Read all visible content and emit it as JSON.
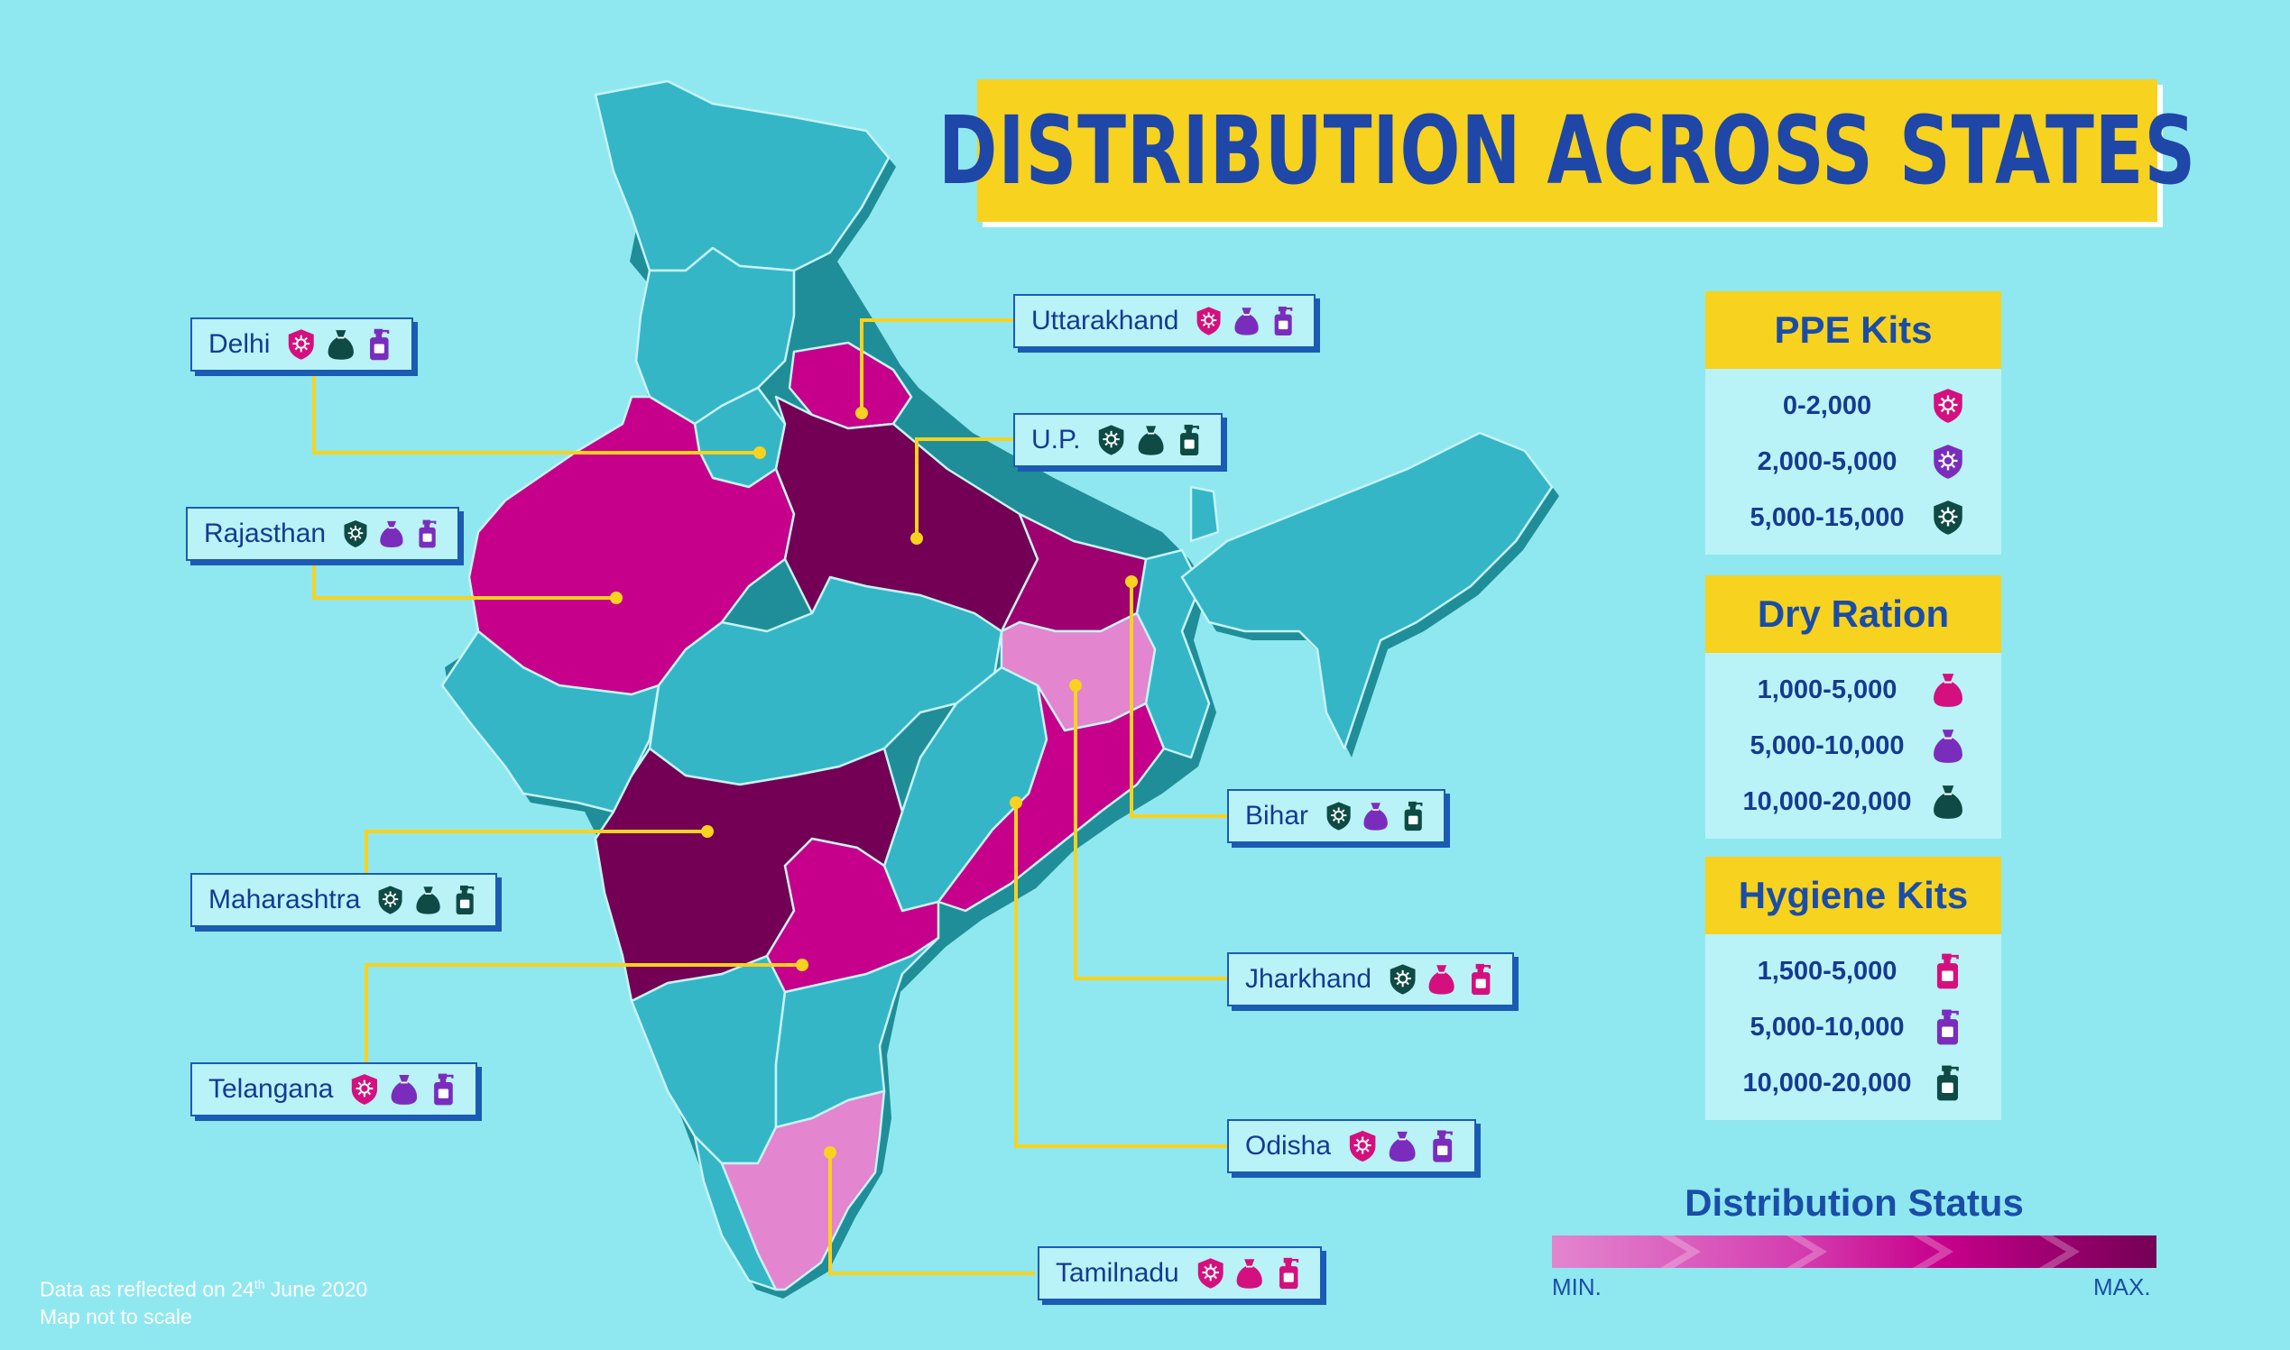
{
  "title": "DISTRIBUTION ACROSS STATES",
  "colors": {
    "background": "#8fe8f0",
    "map_base": "#34b6c7",
    "level_1": "#e385cf",
    "level_2": "#c7008b",
    "level_3": "#9e006f",
    "level_4": "#730054",
    "connector": "#f7d21f",
    "ppe_low": "#d4107e",
    "ppe_mid": "#7a2dbd",
    "ppe_high": "#0f4a45"
  },
  "states": [
    {
      "name": "Delhi",
      "ppe": "ppe-0-2000-icon",
      "ration": "ration-10000-20000-icon",
      "hygiene": "hygiene-5000-10000-icon"
    },
    {
      "name": "Rajasthan",
      "ppe": "ppe-5000-15000-icon",
      "ration": "ration-5000-10000-icon",
      "hygiene": "hygiene-5000-10000-icon"
    },
    {
      "name": "Maharashtra",
      "ppe": "ppe-5000-15000-icon",
      "ration": "ration-10000-20000-icon",
      "hygiene": "hygiene-10000-20000-icon"
    },
    {
      "name": "Telangana",
      "ppe": "ppe-0-2000-icon",
      "ration": "ration-5000-10000-icon",
      "hygiene": "hygiene-5000-10000-icon"
    },
    {
      "name": "Uttarakhand",
      "ppe": "ppe-0-2000-icon",
      "ration": "ration-5000-10000-icon",
      "hygiene": "hygiene-5000-10000-icon"
    },
    {
      "name": "U.P.",
      "ppe": "ppe-5000-15000-icon",
      "ration": "ration-10000-20000-icon",
      "hygiene": "hygiene-10000-20000-icon"
    },
    {
      "name": "Bihar",
      "ppe": "ppe-5000-15000-icon",
      "ration": "ration-5000-10000-icon",
      "hygiene": "hygiene-10000-20000-icon"
    },
    {
      "name": "Jharkhand",
      "ppe": "ppe-5000-15000-icon",
      "ration": "ration-1000-5000-icon",
      "hygiene": "hygiene-1500-5000-icon"
    },
    {
      "name": "Odisha",
      "ppe": "ppe-0-2000-icon",
      "ration": "ration-5000-10000-icon",
      "hygiene": "hygiene-5000-10000-icon"
    },
    {
      "name": "Tamilnadu",
      "ppe": "ppe-0-2000-icon",
      "ration": "ration-1000-5000-icon",
      "hygiene": "hygiene-1500-5000-icon"
    }
  ],
  "legend": {
    "ppe": {
      "title": "PPE Kits",
      "rows": [
        "0-2,000",
        "2,000-5,000",
        "5,000-15,000"
      ]
    },
    "ration": {
      "title": "Dry Ration",
      "rows": [
        "1,000-5,000",
        "5,000-10,000",
        "10,000-20,000"
      ]
    },
    "hygiene": {
      "title": "Hygiene Kits",
      "rows": [
        "1,500-5,000",
        "5,000-10,000",
        "10,000-20,000"
      ]
    }
  },
  "status": {
    "title": "Distribution Status",
    "min": "MIN.",
    "max": "MAX."
  },
  "footnote": {
    "date_prefix": "Data as reflected on 24",
    "date_sup": "th",
    "date_suffix": " June 2020",
    "scale": "Map not to scale"
  }
}
